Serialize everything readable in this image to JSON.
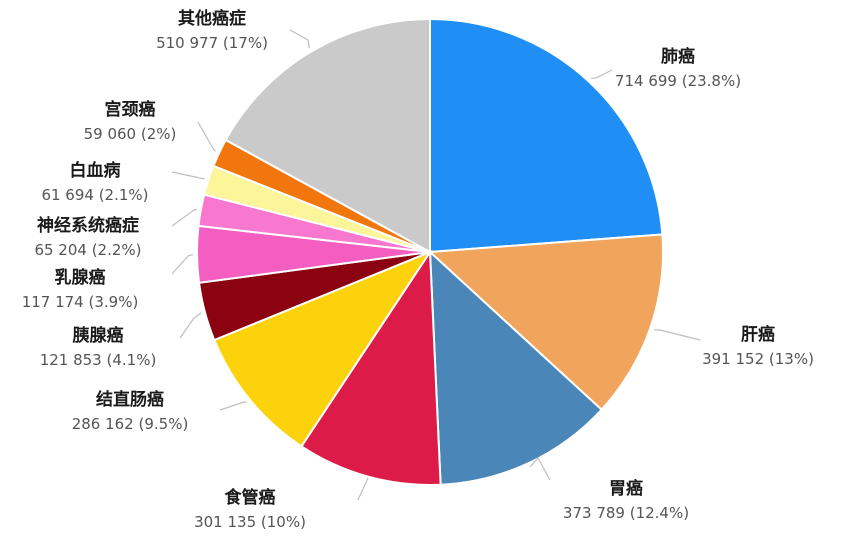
{
  "chart_data": {
    "type": "pie",
    "title": "",
    "slices": [
      {
        "name": "肺癌",
        "value": 714699,
        "label_value": "714 699 (23.8%)",
        "percent": 23.8,
        "color": "#1f8ff5"
      },
      {
        "name": "肝癌",
        "value": 391152,
        "label_value": "391 152 (13%)",
        "percent": 13.0,
        "color": "#f0a45c"
      },
      {
        "name": "胃癌",
        "value": 373789,
        "label_value": "373 789 (12.4%)",
        "percent": 12.4,
        "color": "#4a86b8"
      },
      {
        "name": "食管癌",
        "value": 301135,
        "label_value": "301 135 (10%)",
        "percent": 10.0,
        "color": "#dc1b48"
      },
      {
        "name": "结直肠癌",
        "value": 286162,
        "label_value": "286 162 (9.5%)",
        "percent": 9.5,
        "color": "#fcd20c"
      },
      {
        "name": "胰腺癌",
        "value": 121853,
        "label_value": "121 853 (4.1%)",
        "percent": 4.1,
        "color": "#8b0210"
      },
      {
        "name": "乳腺癌",
        "value": 117174,
        "label_value": "117 174 (3.9%)",
        "percent": 3.9,
        "color": "#f45ec0"
      },
      {
        "name": "神经系统癌症",
        "value": 65204,
        "label_value": "65 204 (2.2%)",
        "percent": 2.2,
        "color": "#f877cf"
      },
      {
        "name": "白血病",
        "value": 61694,
        "label_value": "61 694 (2.1%)",
        "percent": 2.1,
        "color": "#fdf59a"
      },
      {
        "name": "宫颈癌",
        "value": 59060,
        "label_value": "59 060 (2%)",
        "percent": 2.0,
        "color": "#f2760e"
      },
      {
        "name": "其他癌症",
        "value": 510977,
        "label_value": "510 977 (17%)",
        "percent": 17.0,
        "color": "#cacaca"
      }
    ]
  }
}
